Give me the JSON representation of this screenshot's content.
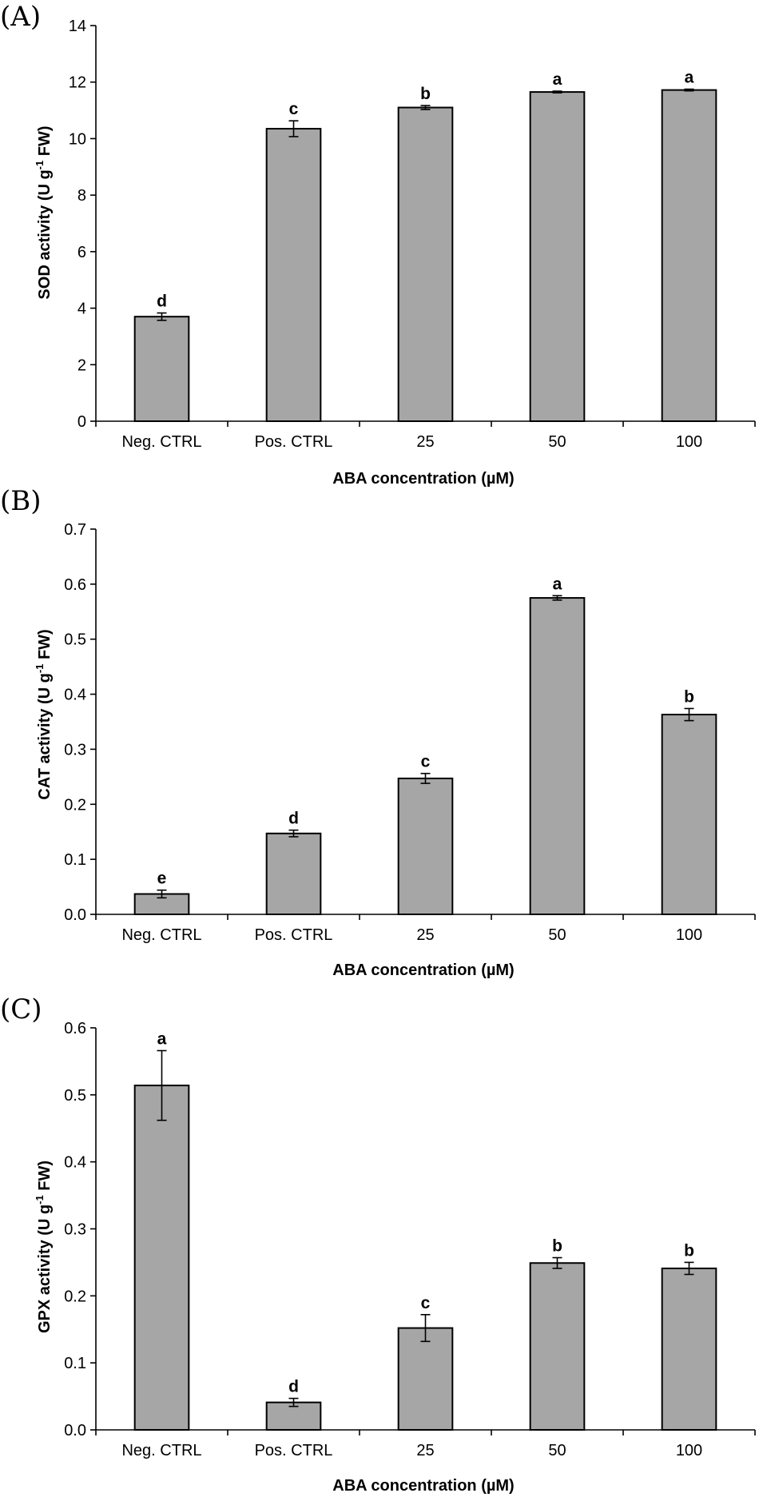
{
  "chart_data": [
    {
      "type": "bar",
      "panel_label": "(A)",
      "categories": [
        "Neg. CTRL",
        "Pos. CTRL",
        "25",
        "50",
        "100"
      ],
      "values": [
        3.7,
        10.35,
        11.1,
        11.65,
        11.72
      ],
      "errors": [
        0.13,
        0.28,
        0.07,
        0.03,
        0.03
      ],
      "letters": [
        "d",
        "c",
        "b",
        "a",
        "a"
      ],
      "xlabel": "ABA concentration (µM)",
      "ylabel": {
        "pre": "SOD activity (U g",
        "sup": "-1",
        "post": " FW)"
      },
      "ylim": [
        0,
        14
      ],
      "yticks": [
        0,
        2,
        4,
        6,
        8,
        10,
        12,
        14
      ],
      "ytick_labels": [
        "0",
        "2",
        "4",
        "6",
        "8",
        "10",
        "12",
        "14"
      ],
      "bar_color": "#a6a6a6",
      "grid": false
    },
    {
      "type": "bar",
      "panel_label": "(B)",
      "categories": [
        "Neg. CTRL",
        "Pos. CTRL",
        "25",
        "50",
        "100"
      ],
      "values": [
        0.037,
        0.147,
        0.247,
        0.575,
        0.363
      ],
      "errors": [
        0.007,
        0.006,
        0.009,
        0.004,
        0.011
      ],
      "letters": [
        "e",
        "d",
        "c",
        "a",
        "b"
      ],
      "xlabel": "ABA concentration (µM)",
      "ylabel": {
        "pre": "CAT activity (U g",
        "sup": "-1",
        "post": " FW)"
      },
      "ylim": [
        0,
        0.7
      ],
      "yticks": [
        0,
        0.1,
        0.2,
        0.3,
        0.4,
        0.5,
        0.6,
        0.7
      ],
      "ytick_labels": [
        "0.0",
        "0.1",
        "0.2",
        "0.3",
        "0.4",
        "0.5",
        "0.6",
        "0.7"
      ],
      "bar_color": "#a6a6a6",
      "grid": false
    },
    {
      "type": "bar",
      "panel_label": "(C)",
      "categories": [
        "Neg. CTRL",
        "Pos. CTRL",
        "25",
        "50",
        "100"
      ],
      "values": [
        0.514,
        0.041,
        0.152,
        0.249,
        0.241
      ],
      "errors": [
        0.052,
        0.006,
        0.02,
        0.008,
        0.009
      ],
      "letters": [
        "a",
        "d",
        "c",
        "b",
        "b"
      ],
      "xlabel": "ABA concentration (µM)",
      "ylabel": {
        "pre": "GPX activity (U g",
        "sup": "-1",
        "post": " FW)"
      },
      "ylim": [
        0,
        0.6
      ],
      "yticks": [
        0,
        0.1,
        0.2,
        0.3,
        0.4,
        0.5,
        0.6
      ],
      "ytick_labels": [
        "0.0",
        "0.1",
        "0.2",
        "0.3",
        "0.4",
        "0.5",
        "0.6"
      ],
      "bar_color": "#a6a6a6",
      "grid": false
    }
  ]
}
